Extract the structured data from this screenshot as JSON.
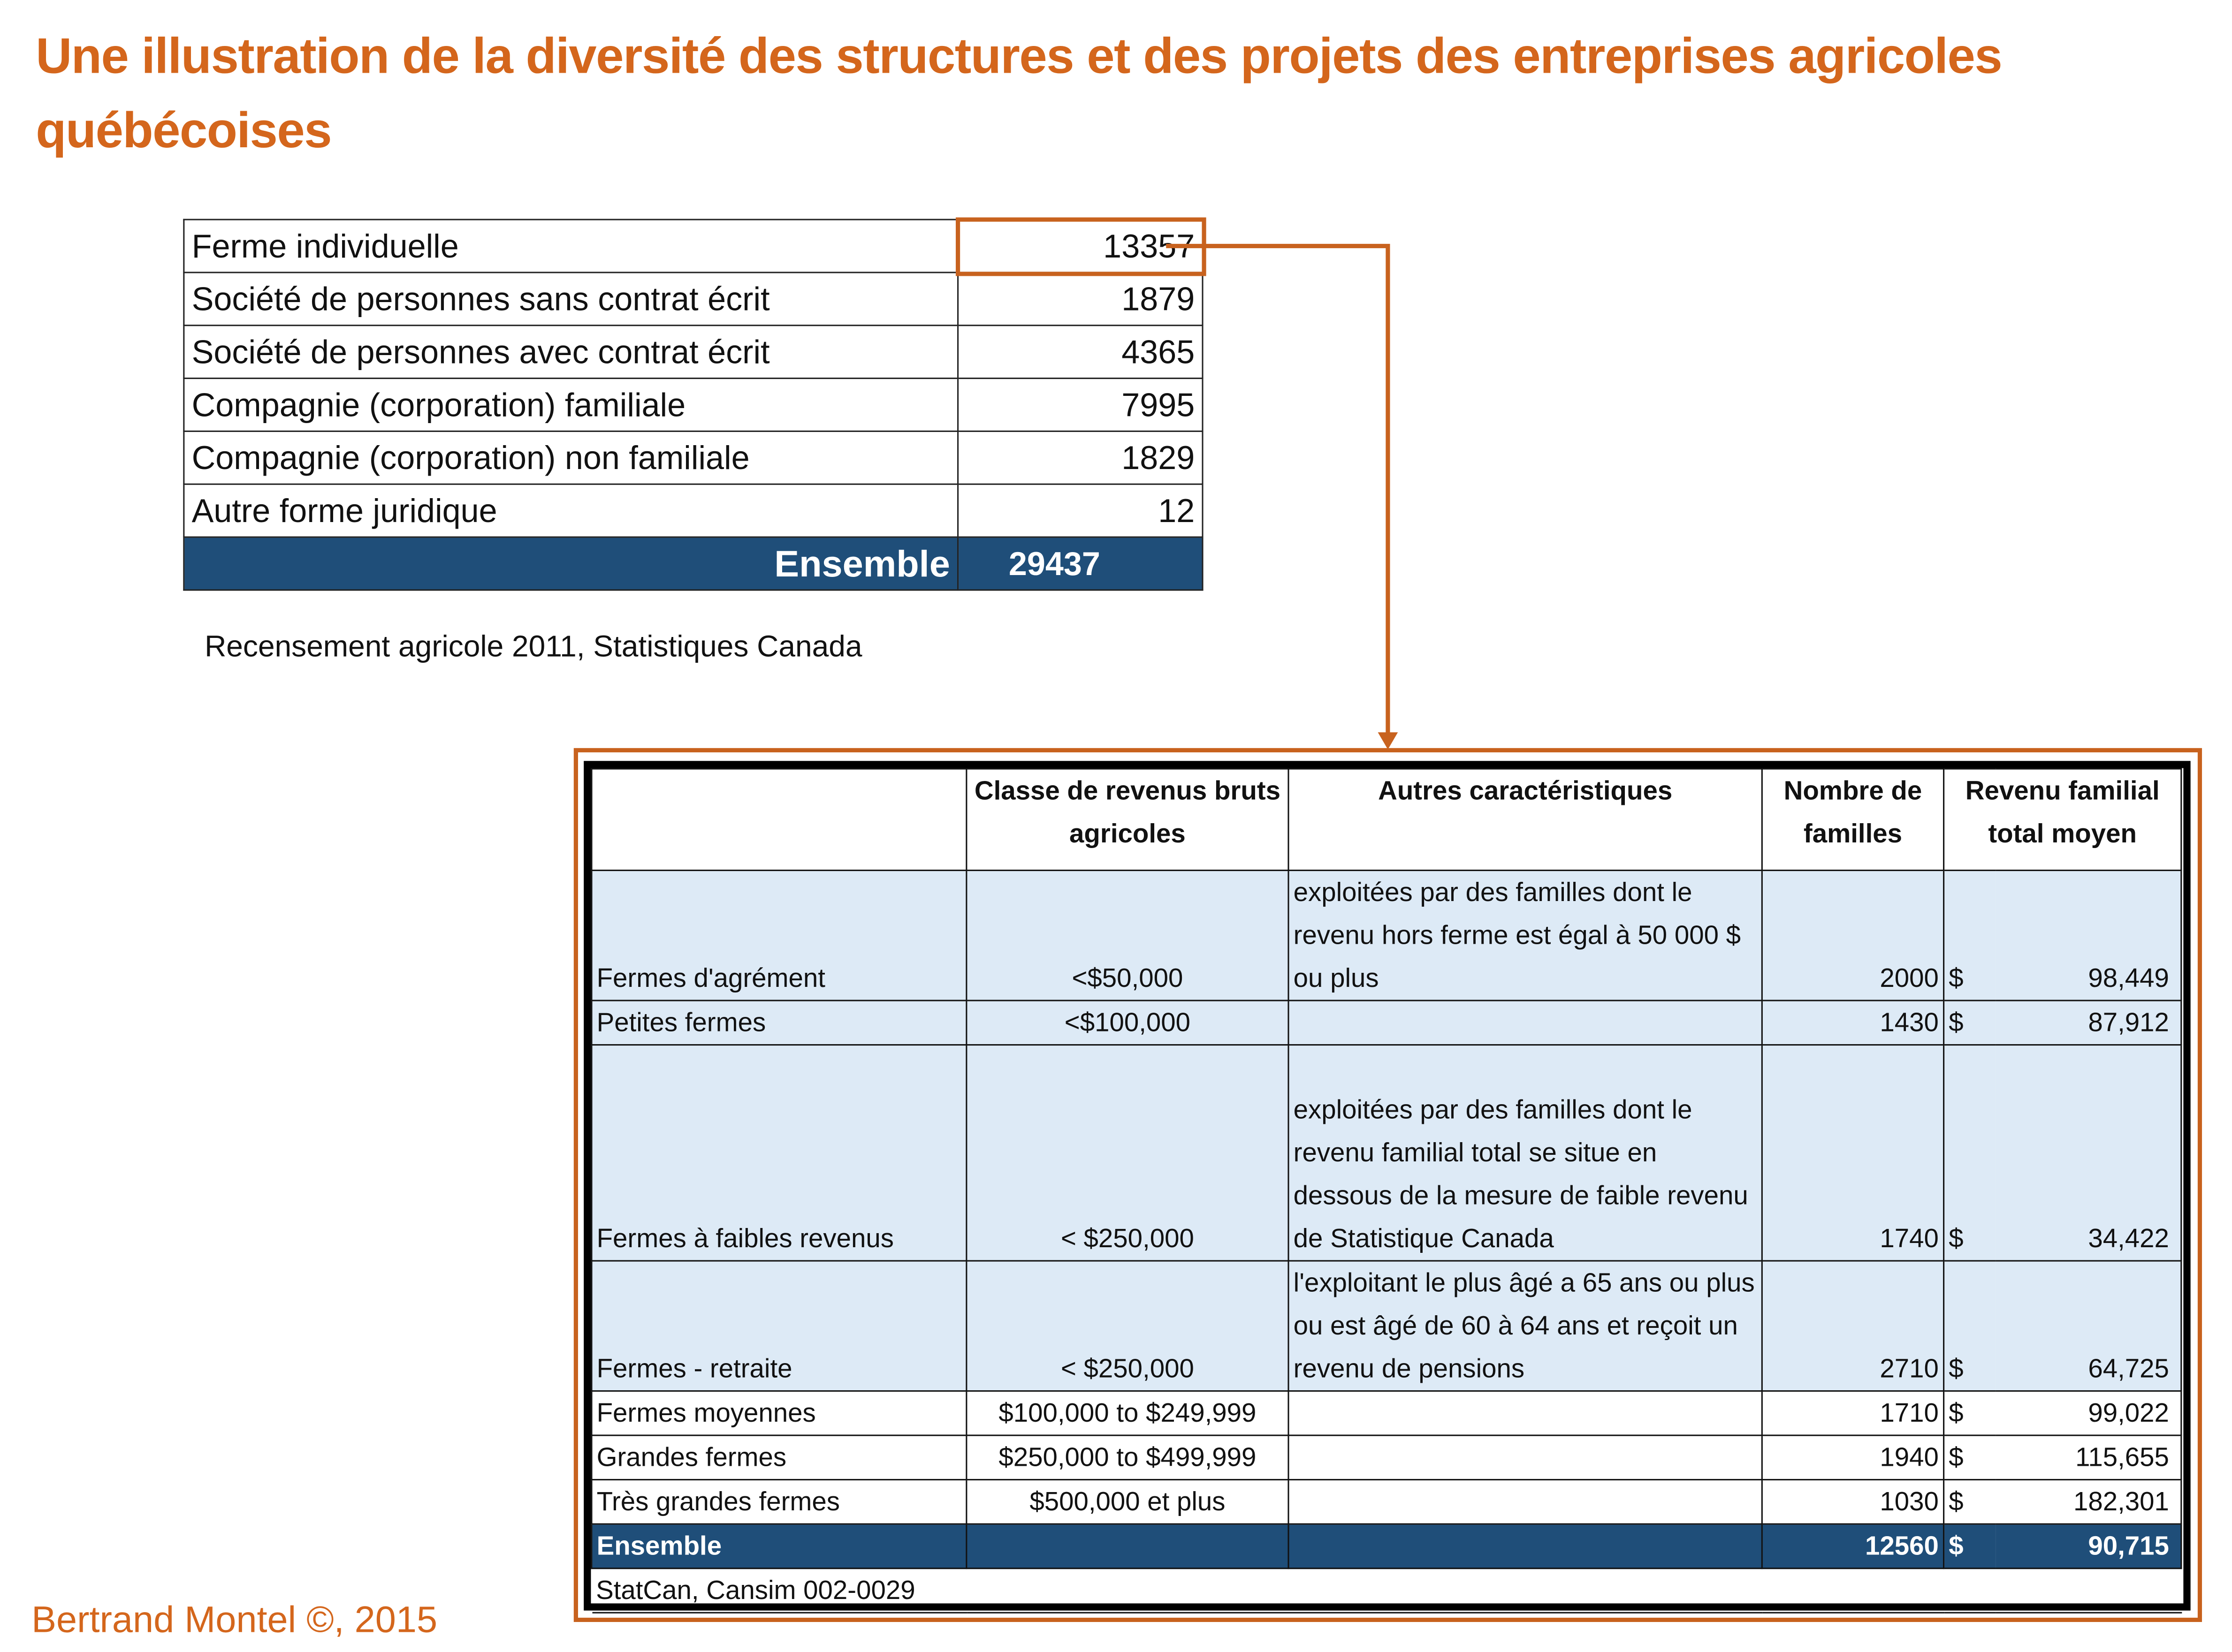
{
  "title": "Une illustration de la diversité des structures et des projets des entreprises agricoles québécoises",
  "legal_forms": {
    "rows": [
      {
        "label": "Ferme individuelle",
        "value": "13357",
        "highlighted": true
      },
      {
        "label": "Société de personnes sans contrat écrit",
        "value": "1879"
      },
      {
        "label": "Société de personnes avec contrat écrit",
        "value": "4365"
      },
      {
        "label": "Compagnie (corporation) familiale",
        "value": "7995"
      },
      {
        "label": "Compagnie (corporation) non familiale",
        "value": "1829"
      },
      {
        "label": "Autre forme juridique",
        "value": "12"
      }
    ],
    "total": {
      "label": "Ensemble",
      "value": "29437"
    },
    "source": "Recensement agricole 2011, Statistiques Canada"
  },
  "farm_types": {
    "headers": [
      "",
      "Classe de revenus bruts agricoles",
      "Autres caractéristiques",
      "Nombre de familles",
      "Revenu familial total moyen"
    ],
    "rows": [
      {
        "type": "Fermes d'agrément",
        "class": "<$50,000",
        "other": "exploitées par des familles dont le revenu hors ferme est égal à 50 000 $ ou plus",
        "families": "2000",
        "currency": "$",
        "income": "98,449"
      },
      {
        "type": "Petites fermes",
        "class": "<$100,000",
        "other": "",
        "families": "1430",
        "currency": "$",
        "income": "87,912"
      },
      {
        "type": "Fermes à faibles revenus",
        "class": "< $250,000",
        "other": "exploitées par des familles dont le revenu familial total se situe en dessous de la mesure de faible revenu de Statistique Canada",
        "families": "1740",
        "currency": "$",
        "income": "34,422"
      },
      {
        "type": "Fermes - retraite",
        "class": "< $250,000",
        "other": "l'exploitant le plus âgé a 65 ans ou plus ou est âgé de 60 à 64 ans et reçoit un revenu de pensions",
        "families": "2710",
        "currency": "$",
        "income": "64,725"
      },
      {
        "type": "Fermes moyennes",
        "class": "$100,000 to $249,999",
        "other": "",
        "families": "1710",
        "currency": "$",
        "income": "99,022"
      },
      {
        "type": "Grandes fermes",
        "class": "$250,000 to $499,999",
        "other": "",
        "families": "1940",
        "currency": "$",
        "income": "115,655"
      },
      {
        "type": "Très grandes fermes",
        "class": "$500,000 et plus",
        "other": "",
        "families": "1030",
        "currency": "$",
        "income": "182,301"
      }
    ],
    "total": {
      "type": "Ensemble",
      "families": "12560",
      "currency": "$",
      "income": "90,715"
    },
    "source": "StatCan, Cansim 002-0029"
  },
  "footer": "Bertrand Montel ©, 2015",
  "colors": {
    "accent": "#d4661c",
    "header_blue": "#1f4e79",
    "row_blue": "#ddeaf6"
  }
}
